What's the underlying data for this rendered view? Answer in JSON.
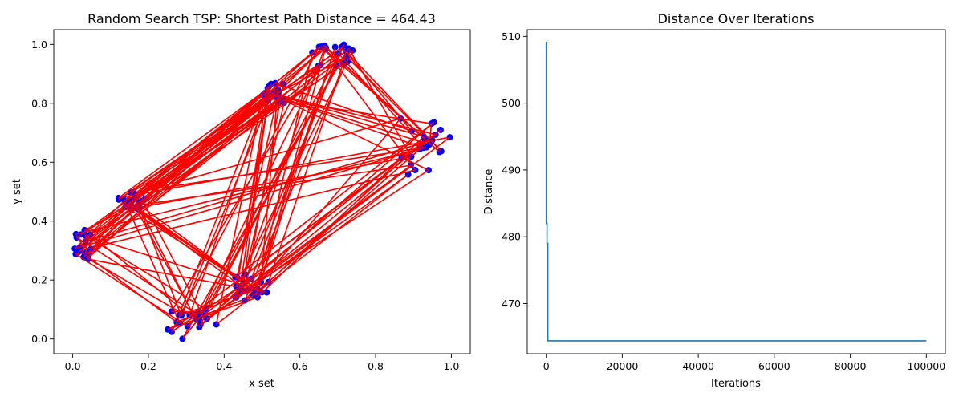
{
  "chart_data": [
    {
      "type": "scatter",
      "title": "Random Search TSP: Shortest Path Distance = 464.43",
      "xlabel": "x set",
      "ylabel": "y set",
      "xlim": [
        -0.05,
        1.05
      ],
      "ylim": [
        -0.05,
        1.05
      ],
      "xticks": [
        "0.0",
        "0.2",
        "0.4",
        "0.6",
        "0.8",
        "1.0"
      ],
      "yticks": [
        "0.0",
        "0.2",
        "0.4",
        "0.6",
        "0.8",
        "1.0"
      ],
      "grid": false,
      "point_color": "#0000ff",
      "path_color": "#ff0000",
      "clusters": [
        {
          "x": [
            0.0,
            0.05
          ],
          "y": [
            0.25,
            0.37
          ]
        },
        {
          "x": [
            0.12,
            0.2
          ],
          "y": [
            0.44,
            0.5
          ]
        },
        {
          "x": [
            0.25,
            0.38
          ],
          "y": [
            0.0,
            0.1
          ]
        },
        {
          "x": [
            0.42,
            0.52
          ],
          "y": [
            0.13,
            0.22
          ]
        },
        {
          "x": [
            0.5,
            0.56
          ],
          "y": [
            0.8,
            0.87
          ]
        },
        {
          "x": [
            0.63,
            0.75
          ],
          "y": [
            0.92,
            1.0
          ]
        },
        {
          "x": [
            0.86,
            1.0
          ],
          "y": [
            0.55,
            0.75
          ]
        }
      ]
    },
    {
      "type": "line",
      "title": "Distance Over Iterations",
      "xlabel": "Iterations",
      "ylabel": "Distance",
      "xlim": [
        -5000,
        105000
      ],
      "ylim": [
        462.5,
        511
      ],
      "xticks": [
        "0",
        "20000",
        "40000",
        "60000",
        "80000",
        "100000"
      ],
      "yticks": [
        "470",
        "480",
        "490",
        "500",
        "510"
      ],
      "line_color": "#1f77b4",
      "series": [
        {
          "x": [
            0,
            0,
            200,
            200,
            400,
            400,
            100000
          ],
          "y": [
            509.2,
            482.0,
            482.0,
            479.0,
            479.0,
            464.43,
            464.43
          ]
        }
      ]
    }
  ]
}
